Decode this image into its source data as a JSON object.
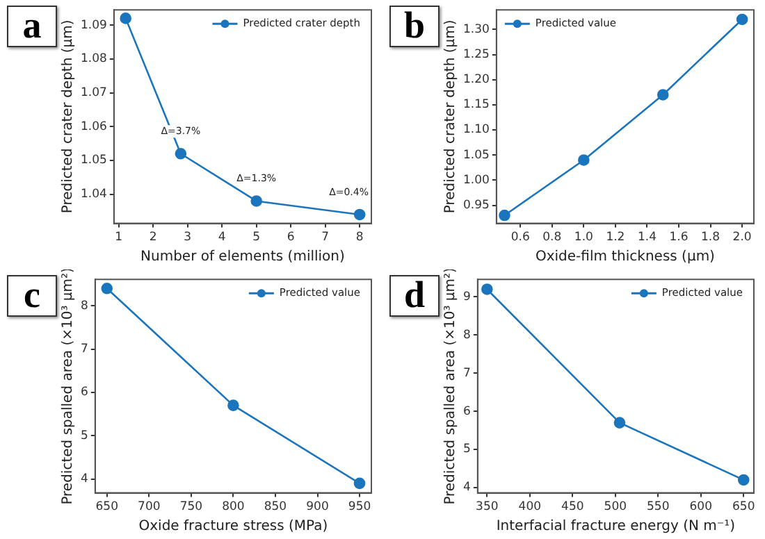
{
  "chart_data": [
    {
      "type": "line",
      "title": "a",
      "xlabel": "Number of elements (million)",
      "ylabel": "Predicted crater depth (μm)",
      "x": [
        1.2,
        2.8,
        5,
        8
      ],
      "series": [
        {
          "name": "Predicted crater depth",
          "color": "#1a75bc",
          "values": [
            1.092,
            1.052,
            1.038,
            1.034
          ]
        }
      ],
      "xlim": [
        0.86,
        8.34
      ],
      "xticks": [
        1,
        2,
        3,
        4,
        5,
        6,
        7,
        8
      ],
      "ylim": [
        1.0314,
        1.0945
      ],
      "yticks": [
        1.04,
        1.05,
        1.06,
        1.07,
        1.08,
        1.09
      ],
      "annotations": [
        {
          "text": "Δ=3.7%",
          "x": 2.8,
          "y": 1.052
        },
        {
          "text": "Δ=1.3%",
          "x": 5,
          "y": 1.038
        },
        {
          "text": "Δ=0.4%",
          "x": 8,
          "y": 1.034
        }
      ],
      "legend": "top right",
      "marker": "circle",
      "line_style": "solid",
      "grid": false
    },
    {
      "type": "line",
      "title": "b",
      "xlabel": "Oxide-film thickness (μm)",
      "ylabel": "Predicted crater depth (μm)",
      "x": [
        0.5,
        1,
        1.5,
        2
      ],
      "series": [
        {
          "name": "Predicted value",
          "color": "#1a75bc",
          "values": [
            0.93,
            1.04,
            1.17,
            1.32
          ]
        }
      ],
      "xlim": [
        0.449,
        2.074
      ],
      "xticks": [
        {
          "value": 0.6,
          "label": "0.6"
        },
        {
          "value": 0.8,
          "label": "0.8"
        },
        {
          "value": 1,
          "label": "1.0"
        },
        {
          "value": 1.2,
          "label": "1.2"
        },
        {
          "value": 1.4,
          "label": "1.4"
        },
        {
          "value": 1.6,
          "label": "1.6"
        },
        {
          "value": 1.8,
          "label": "1.8"
        },
        {
          "value": 2,
          "label": "2.0"
        }
      ],
      "ylim": [
        0.914,
        1.339
      ],
      "yticks": [
        {
          "value": 0.95,
          "label": "0.95"
        },
        {
          "value": 1,
          "label": "1.00"
        },
        {
          "value": 1.05,
          "label": "1.05"
        },
        {
          "value": 1.1,
          "label": "1.10"
        },
        {
          "value": 1.15,
          "label": "1.15"
        },
        {
          "value": 1.2,
          "label": "1.20"
        },
        {
          "value": 1.25,
          "label": "1.25"
        },
        {
          "value": 1.3,
          "label": "1.30"
        }
      ],
      "legend": "top left",
      "marker": "circle",
      "line_style": "solid",
      "grid": false
    },
    {
      "type": "line",
      "title": "c",
      "xlabel": "Oxide fracture stress (MPa)",
      "ylabel": "Predicted spalled area (×10³ μm²)",
      "x": [
        650,
        800,
        950
      ],
      "series": [
        {
          "name": "Predicted value",
          "color": "#1a75bc",
          "values": [
            8.4,
            5.7,
            3.9
          ]
        }
      ],
      "xlim": [
        636,
        964
      ],
      "xticks": [
        650,
        700,
        750,
        800,
        850,
        900,
        950
      ],
      "ylim": [
        3.68,
        8.61
      ],
      "yticks": [
        4,
        5,
        6,
        7,
        8
      ],
      "legend": "top right",
      "marker": "circle",
      "line_style": "solid",
      "grid": false
    },
    {
      "type": "line",
      "title": "d",
      "xlabel": "Interfacial fracture energy (N m⁻¹)",
      "ylabel": "Predicted spalled area (×10³ μm²)",
      "x": [
        350,
        505,
        650
      ],
      "series": [
        {
          "name": "Predicted value",
          "color": "#1a75bc",
          "values": [
            9.2,
            5.7,
            4.2
          ]
        }
      ],
      "xlim": [
        339,
        662
      ],
      "xticks": [
        350,
        400,
        450,
        500,
        550,
        600,
        650
      ],
      "ylim": [
        3.86,
        9.46
      ],
      "yticks": [
        4,
        5,
        6,
        7,
        8,
        9
      ],
      "legend": "top right",
      "marker": "circle",
      "line_style": "solid",
      "grid": false
    }
  ]
}
